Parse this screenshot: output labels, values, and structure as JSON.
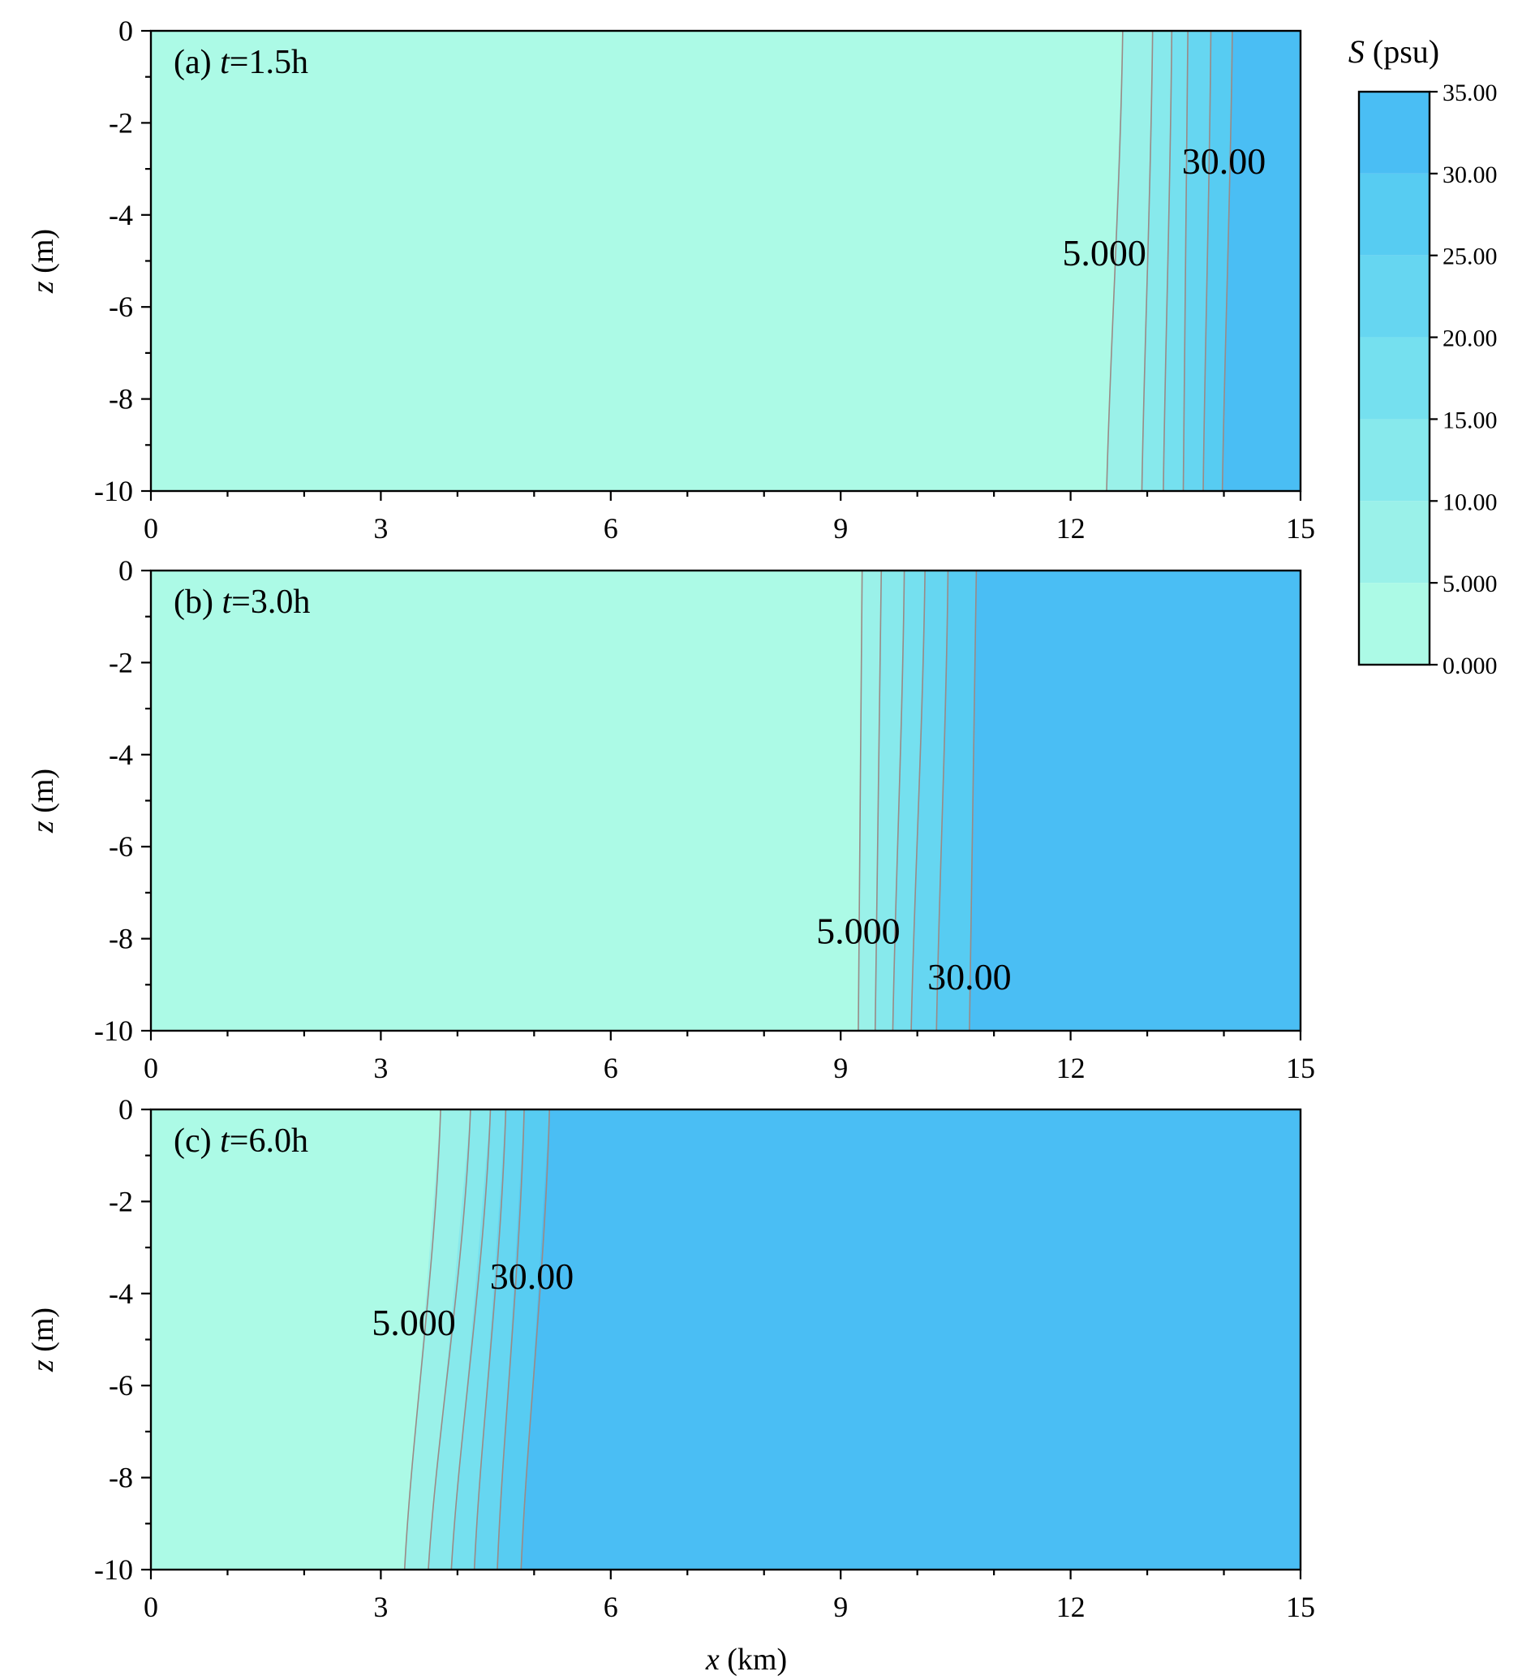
{
  "chart_data": {
    "type": "heatmap",
    "variable_symbol": "S",
    "variable_unit": "(psu)",
    "x_axis": {
      "symbol": "x",
      "unit": "(km)",
      "range": [
        0,
        15
      ],
      "ticks": [
        "0",
        "3",
        "6",
        "9",
        "12",
        "15"
      ],
      "minor_step": 1
    },
    "y_axis": {
      "symbol": "z",
      "unit": "(m)",
      "range": [
        -10,
        0
      ],
      "ticks": [
        "0",
        "-2",
        "-4",
        "-6",
        "-8",
        "-10"
      ],
      "minor_step": 1
    },
    "colorbar": {
      "min": 0,
      "max": 35,
      "labels": [
        "35.00",
        "30.00",
        "25.00",
        "20.00",
        "15.00",
        "10.00",
        "5.000",
        "0.000"
      ],
      "bands": [
        {
          "from": 0,
          "to": 5,
          "color": "#acfae6"
        },
        {
          "from": 5,
          "to": 10,
          "color": "#9af1e9"
        },
        {
          "from": 10,
          "to": 15,
          "color": "#87e9ec"
        },
        {
          "from": 15,
          "to": 20,
          "color": "#75e0ef"
        },
        {
          "from": 20,
          "to": 25,
          "color": "#66d6f1"
        },
        {
          "from": 25,
          "to": 30,
          "color": "#57ccf2"
        },
        {
          "from": 30,
          "to": 35,
          "color": "#4abef4"
        }
      ]
    },
    "panels": [
      {
        "id": "a",
        "prefix": "(a) ",
        "t_symbol": "t",
        "t_value": "=1.5h",
        "isohalines": [
          {
            "level": 5,
            "top_x": 12.68,
            "bottom_x": 12.47
          },
          {
            "level": 10,
            "top_x": 13.07,
            "bottom_x": 12.93
          },
          {
            "level": 15,
            "top_x": 13.32,
            "bottom_x": 13.21
          },
          {
            "level": 20,
            "top_x": 13.53,
            "bottom_x": 13.47
          },
          {
            "level": 25,
            "top_x": 13.83,
            "bottom_x": 13.73
          },
          {
            "level": 30,
            "top_x": 14.11,
            "bottom_x": 13.98
          }
        ],
        "contour_labels": [
          {
            "text": "30.00",
            "x": 14.0,
            "z": -3.1
          },
          {
            "text": "5.000",
            "x": 12.44,
            "z": -5.1
          }
        ]
      },
      {
        "id": "b",
        "prefix": "(b) ",
        "t_symbol": "t",
        "t_value": "=3.0h",
        "isohalines": [
          {
            "level": 5,
            "top_x": 9.28,
            "bottom_x": 9.23
          },
          {
            "level": 10,
            "top_x": 9.53,
            "bottom_x": 9.45
          },
          {
            "level": 15,
            "top_x": 9.83,
            "bottom_x": 9.68
          },
          {
            "level": 20,
            "top_x": 10.1,
            "bottom_x": 9.92
          },
          {
            "level": 25,
            "top_x": 10.4,
            "bottom_x": 10.25
          },
          {
            "level": 30,
            "top_x": 10.77,
            "bottom_x": 10.68
          }
        ],
        "contour_labels": [
          {
            "text": "5.000",
            "x": 9.23,
            "z": -8.1
          },
          {
            "text": "30.00",
            "x": 10.68,
            "z": -9.1
          }
        ]
      },
      {
        "id": "c",
        "prefix": "(c) ",
        "t_symbol": "t",
        "t_value": "=6.0h",
        "isohalines": [
          {
            "level": 5,
            "top_x": 3.78,
            "bottom_x": 3.31
          },
          {
            "level": 10,
            "top_x": 4.17,
            "bottom_x": 3.62
          },
          {
            "level": 15,
            "top_x": 4.43,
            "bottom_x": 3.92
          },
          {
            "level": 20,
            "top_x": 4.63,
            "bottom_x": 4.22
          },
          {
            "level": 25,
            "top_x": 4.87,
            "bottom_x": 4.52
          },
          {
            "level": 30,
            "top_x": 5.2,
            "bottom_x": 4.83
          }
        ],
        "contour_labels": [
          {
            "text": "30.00",
            "x": 4.97,
            "z": -3.9
          },
          {
            "text": "5.000",
            "x": 3.43,
            "z": -4.9
          }
        ]
      }
    ]
  }
}
